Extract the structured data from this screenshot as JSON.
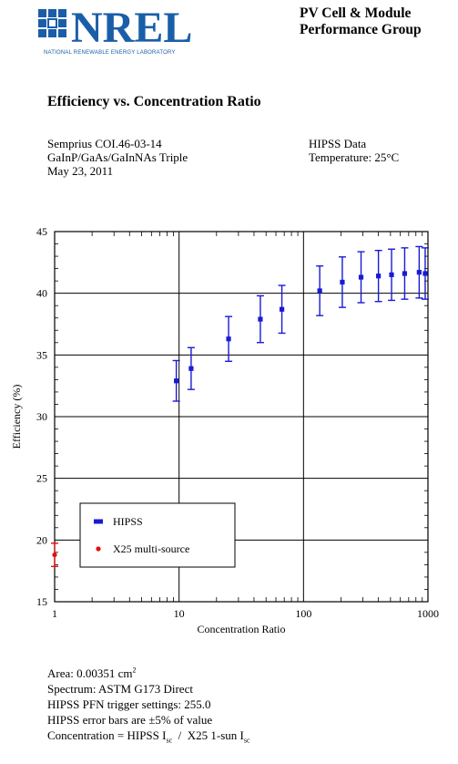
{
  "header": {
    "logo_text": "NREL",
    "logo_subtitle": "NATIONAL RENEWABLE ENERGY LABORATORY",
    "group_line1": "PV Cell & Module",
    "group_line2": "Performance Group"
  },
  "page_title": "Efficiency vs. Concentration Ratio",
  "meta": {
    "device": "Semprius COI.46-03-14",
    "cell_type": "GaInP/GaAs/GaInNAs Triple",
    "date": "May 23, 2011",
    "data_source": "HIPSS Data",
    "temperature": "Temperature: 25°C"
  },
  "chart_data": {
    "type": "scatter",
    "xlabel": "Concentration Ratio",
    "ylabel": "Efficiency (%)",
    "x_scale": "log",
    "xlim": [
      1,
      1000
    ],
    "ylim": [
      15,
      45
    ],
    "x_ticks": [
      1,
      10,
      100,
      1000
    ],
    "x_tick_labels": [
      "1",
      "10",
      "100",
      "1000"
    ],
    "y_ticks": [
      15,
      20,
      25,
      30,
      35,
      40,
      45
    ],
    "y_tick_labels": [
      "15",
      "20",
      "25",
      "30",
      "35",
      "40",
      "45"
    ],
    "grid": true,
    "legend_position": "bottom-left",
    "series": [
      {
        "name": "HIPSS",
        "color": "#1a1ad6",
        "marker": "square",
        "error_bar_pct": 5,
        "points": [
          {
            "x": 9.5,
            "y": 32.9
          },
          {
            "x": 12.5,
            "y": 33.9
          },
          {
            "x": 25,
            "y": 36.3
          },
          {
            "x": 45,
            "y": 37.9
          },
          {
            "x": 67,
            "y": 38.7
          },
          {
            "x": 135,
            "y": 40.2
          },
          {
            "x": 205,
            "y": 40.9
          },
          {
            "x": 290,
            "y": 41.3
          },
          {
            "x": 400,
            "y": 41.4
          },
          {
            "x": 510,
            "y": 41.5
          },
          {
            "x": 650,
            "y": 41.6
          },
          {
            "x": 850,
            "y": 41.7
          },
          {
            "x": 950,
            "y": 41.6
          }
        ]
      },
      {
        "name": "X25 multi-source",
        "color": "#e01010",
        "marker": "circle",
        "error_bar_pct": 5,
        "points": [
          {
            "x": 1,
            "y": 18.8
          }
        ]
      }
    ]
  },
  "notes": {
    "area_label": "Area: 0.00351 cm",
    "area_exp": "2",
    "spectrum": "Spectrum: ASTM G173 Direct",
    "trigger": "HIPSS PFN trigger settings: 255.0",
    "error_bars": "HIPSS error bars are ±5% of value",
    "conc_prefix": "Concentration = HIPSS I",
    "conc_sub1": "sc",
    "conc_mid": "  /  X25 1-sun I",
    "conc_sub2": "sc"
  }
}
